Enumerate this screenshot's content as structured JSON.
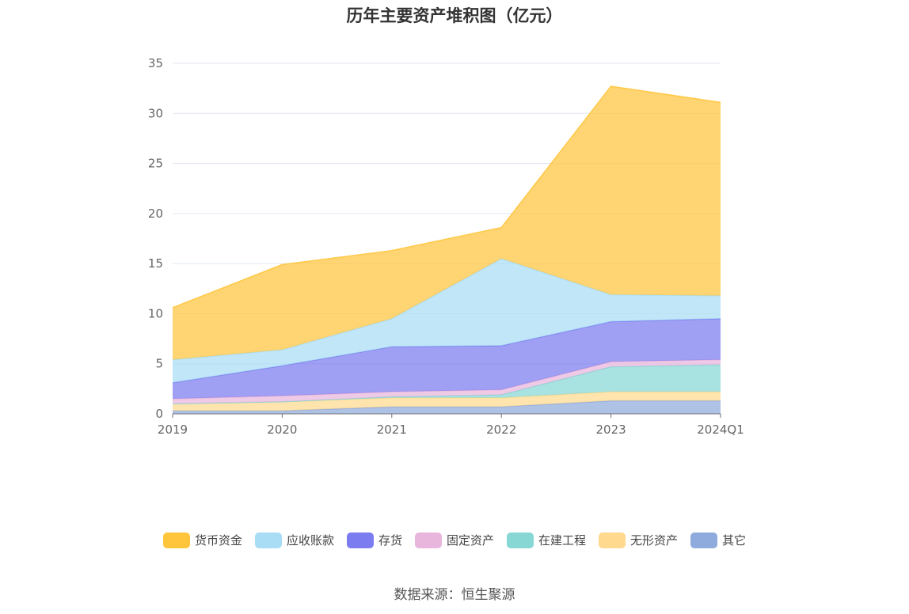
{
  "chart_data": {
    "type": "area",
    "title": "历年主要资产堆积图（亿元）",
    "source": "数据来源：恒生聚源",
    "stacked": true,
    "x": [
      "2019",
      "2020",
      "2021",
      "2022",
      "2023",
      "2024Q1"
    ],
    "ylim": [
      0,
      35
    ],
    "yticks": [
      0,
      5,
      10,
      15,
      20,
      25,
      30,
      35
    ],
    "grid": true,
    "legend_position": "bottom",
    "series": [
      {
        "name": "其它",
        "color": "#8FAADC",
        "values": [
          0.3,
          0.3,
          0.7,
          0.7,
          1.3,
          1.3
        ]
      },
      {
        "name": "无形资产",
        "color": "#FFD98E",
        "values": [
          0.7,
          0.9,
          0.9,
          0.9,
          0.9,
          0.9
        ]
      },
      {
        "name": "在建工程",
        "color": "#87D7D5",
        "values": [
          0.0,
          0.0,
          0.1,
          0.3,
          2.5,
          2.7
        ]
      },
      {
        "name": "固定资产",
        "color": "#E8B5DC",
        "values": [
          0.5,
          0.6,
          0.5,
          0.5,
          0.5,
          0.5
        ]
      },
      {
        "name": "存货",
        "color": "#7A7CEF",
        "values": [
          1.6,
          3.0,
          4.5,
          4.4,
          4.0,
          4.1
        ]
      },
      {
        "name": "应收账款",
        "color": "#A8DDF5",
        "values": [
          2.3,
          1.6,
          2.8,
          8.7,
          2.7,
          2.3
        ]
      },
      {
        "name": "货币资金",
        "color": "#FFC53D",
        "values": [
          5.2,
          8.5,
          6.8,
          3.1,
          20.8,
          19.3
        ]
      }
    ],
    "legend_order": [
      "货币资金",
      "应收账款",
      "存货",
      "固定资产",
      "在建工程",
      "无形资产",
      "其它"
    ]
  }
}
